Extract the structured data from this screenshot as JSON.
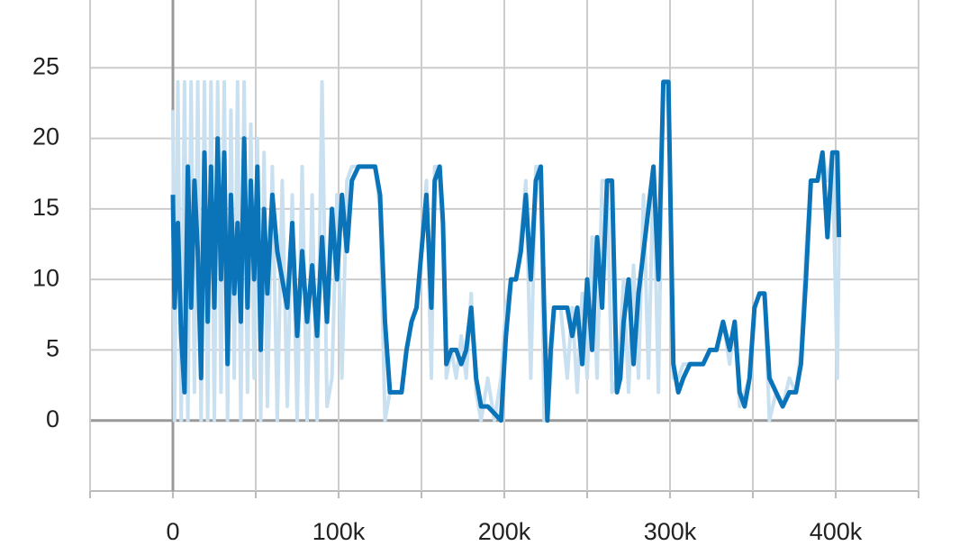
{
  "chart_data": {
    "type": "line",
    "x": [
      0,
      1000,
      3000,
      5000,
      7000,
      9000,
      11000,
      13000,
      15000,
      17000,
      19000,
      21000,
      23000,
      25000,
      27000,
      29000,
      31000,
      33000,
      35000,
      37000,
      39000,
      41000,
      43000,
      45000,
      47000,
      49000,
      51000,
      53000,
      55000,
      57000,
      60000,
      63000,
      66000,
      69000,
      72000,
      75000,
      78000,
      81000,
      84000,
      87000,
      90000,
      93000,
      96000,
      99000,
      102000,
      105000,
      108000,
      112000,
      118000,
      122000,
      125000,
      128000,
      131000,
      135000,
      138000,
      141000,
      144000,
      147000,
      150000,
      153000,
      156000,
      158000,
      161000,
      163000,
      165000,
      168000,
      171000,
      174000,
      177000,
      180000,
      183000,
      186000,
      190000,
      194000,
      198000,
      201000,
      204000,
      207000,
      210000,
      213000,
      216000,
      219000,
      222000,
      224000,
      226000,
      228000,
      230000,
      234000,
      238000,
      241000,
      244000,
      247000,
      250000,
      253000,
      256000,
      259000,
      262000,
      265000,
      268000,
      270000,
      272000,
      275000,
      278000,
      281000,
      284000,
      287000,
      290000,
      293000,
      296000,
      299000,
      302000,
      305000,
      308000,
      312000,
      316000,
      320000,
      324000,
      328000,
      332000,
      336000,
      339000,
      342000,
      345000,
      348000,
      351000,
      354000,
      357000,
      360000,
      364000,
      368000,
      372000,
      376000,
      379000,
      382000,
      385000,
      389000,
      392000,
      395000,
      398000,
      401000,
      402000
    ],
    "series": [
      {
        "color": "#c9e0f0",
        "values": [
          22,
          0,
          24,
          0,
          24,
          0,
          24,
          2,
          24,
          0,
          24,
          0,
          24,
          0,
          24,
          2,
          24,
          0,
          22,
          3,
          24,
          0,
          24,
          2,
          21,
          3,
          20,
          0,
          19,
          1,
          18,
          0,
          17,
          1,
          16,
          0,
          18,
          0,
          16,
          0,
          24,
          1,
          3,
          16,
          3,
          17,
          18,
          18,
          18,
          18,
          15,
          0,
          2,
          2,
          2,
          5,
          7,
          8,
          12,
          17,
          3,
          18,
          18,
          15,
          3,
          5,
          3,
          6,
          3,
          9,
          2,
          0,
          3,
          0,
          3,
          8,
          10,
          10,
          13,
          17,
          3,
          18,
          18,
          0,
          0,
          3,
          8,
          8,
          3,
          8,
          2,
          9,
          3,
          13,
          3,
          17,
          17,
          2,
          3,
          6,
          10,
          2,
          11,
          3,
          16,
          3,
          18,
          2,
          24,
          24,
          3,
          3,
          4,
          4,
          4,
          4,
          5,
          5,
          7,
          4,
          7,
          1,
          2,
          3,
          8,
          9,
          9,
          0,
          2,
          1,
          3,
          2,
          5,
          12,
          17,
          17,
          19,
          17,
          19,
          3,
          13
        ]
      },
      {
        "color": "#0b74b8",
        "values": [
          16,
          8,
          14,
          6,
          2,
          18,
          8,
          17,
          12,
          3,
          19,
          7,
          18,
          8,
          20,
          10,
          19,
          4,
          16,
          9,
          14,
          7,
          20,
          8,
          17,
          10,
          18,
          5,
          15,
          9,
          16,
          12,
          10,
          8,
          14,
          6,
          12,
          7,
          11,
          6,
          13,
          7,
          15,
          10,
          16,
          12,
          17,
          18,
          18,
          18,
          16,
          7,
          2,
          2,
          2,
          5,
          7,
          8,
          12,
          16,
          8,
          17,
          18,
          14,
          4,
          5,
          5,
          4,
          5,
          8,
          3,
          1,
          1,
          0.5,
          0,
          6,
          10,
          10,
          12,
          16,
          10,
          17,
          18,
          8,
          0,
          5,
          8,
          8,
          8,
          6,
          8,
          4,
          10,
          5,
          13,
          8,
          17,
          17,
          2,
          3,
          7,
          10,
          4,
          9,
          12,
          15,
          18,
          10,
          24,
          24,
          4,
          2,
          3,
          4,
          4,
          4,
          5,
          5,
          7,
          5,
          7,
          2,
          1,
          3,
          8,
          9,
          9,
          3,
          2,
          1,
          2,
          2,
          4,
          10,
          17,
          17,
          19,
          13,
          19,
          19,
          13
        ]
      }
    ],
    "xlim": [
      -50000,
      450000
    ],
    "xticks": [
      0,
      {
        "value": 100000,
        "label": "100k"
      },
      {
        "value": 200000,
        "label": "200k"
      },
      {
        "value": 300000,
        "label": "300k"
      },
      {
        "value": 400000,
        "label": "400k"
      }
    ],
    "xminor": [
      -50000,
      50000,
      150000,
      250000,
      350000,
      450000
    ],
    "ylim": [
      -5,
      30
    ],
    "yticks": [
      0,
      5,
      10,
      15,
      20,
      25
    ],
    "grid": true
  }
}
